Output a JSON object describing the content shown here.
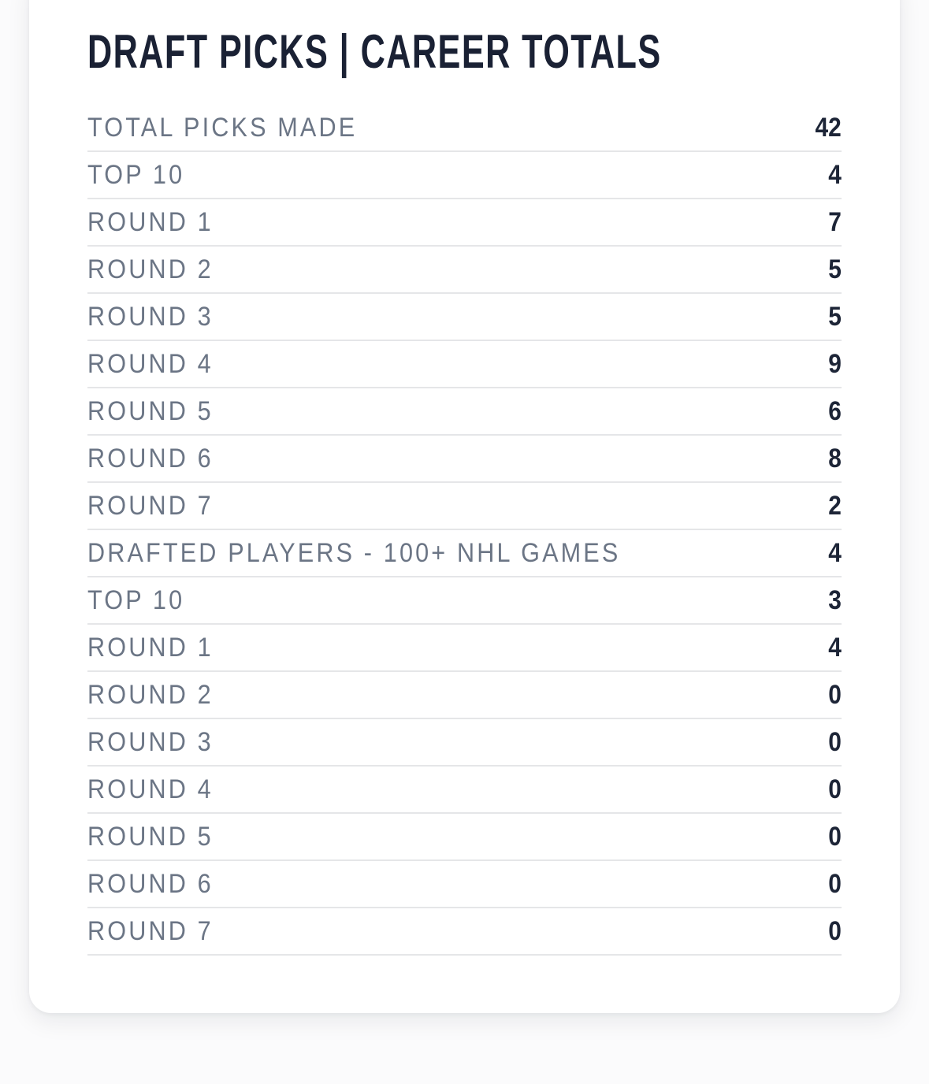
{
  "card": {
    "title": "DRAFT PICKS | CAREER TOTALS",
    "rows": [
      {
        "label": "TOTAL PICKS MADE",
        "value": "42"
      },
      {
        "label": "TOP 10",
        "value": "4"
      },
      {
        "label": "ROUND 1",
        "value": "7"
      },
      {
        "label": "ROUND 2",
        "value": "5"
      },
      {
        "label": "ROUND 3",
        "value": "5"
      },
      {
        "label": "ROUND 4",
        "value": "9"
      },
      {
        "label": "ROUND 5",
        "value": "6"
      },
      {
        "label": "ROUND 6",
        "value": "8"
      },
      {
        "label": "ROUND 7",
        "value": "2"
      },
      {
        "label": "DRAFTED PLAYERS - 100+ NHL GAMES",
        "value": "4"
      },
      {
        "label": "TOP 10",
        "value": "3"
      },
      {
        "label": "ROUND 1",
        "value": "4"
      },
      {
        "label": "ROUND 2",
        "value": "0"
      },
      {
        "label": "ROUND 3",
        "value": "0"
      },
      {
        "label": "ROUND 4",
        "value": "0"
      },
      {
        "label": "ROUND 5",
        "value": "0"
      },
      {
        "label": "ROUND 6",
        "value": "0"
      },
      {
        "label": "ROUND 7",
        "value": "0"
      }
    ],
    "colors": {
      "title_color": "#1a2134",
      "label_color": "#6b7585",
      "value_color": "#1d2537",
      "divider_color": "#e5e6e8",
      "card_background": "#ffffff",
      "page_background": "#fbfbfc"
    }
  }
}
